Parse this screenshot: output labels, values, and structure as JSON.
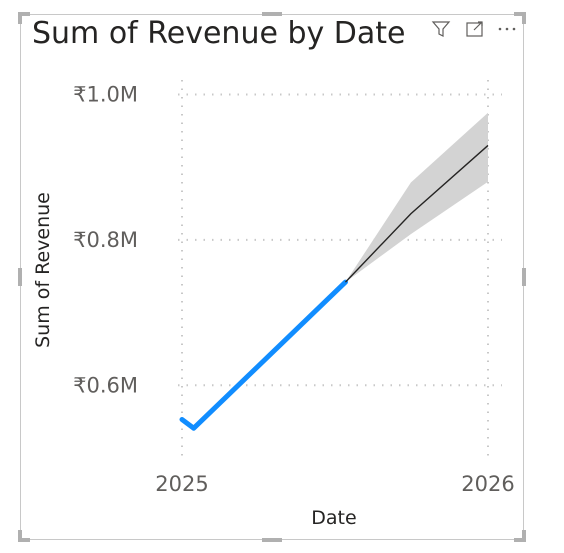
{
  "visual": {
    "title": "Sum of Revenue by Date",
    "header_icons": [
      "filter-icon",
      "focus-mode-icon",
      "more-options-icon"
    ]
  },
  "chart_data": {
    "type": "line",
    "title": "Sum of Revenue by Date",
    "xlabel": "Date",
    "ylabel": "Sum of Revenue",
    "x_ticks": [
      "2025",
      "2026"
    ],
    "y_ticks": [
      "₹0.6M",
      "₹0.8M",
      "₹1.0M"
    ],
    "y_tick_values": [
      0.6,
      0.8,
      1.0
    ],
    "x_range": [
      "2025-01-01",
      "2026-01-01"
    ],
    "y_range": [
      0.5,
      1.02
    ],
    "grid": true,
    "series": [
      {
        "color": "#118DFF",
        "points": [
          {
            "x": "2025-01-01",
            "y": 0.553
          },
          {
            "x": "2025-01-15",
            "y": 0.541
          },
          {
            "x": "2025-07-15",
            "y": 0.742
          }
        ]
      }
    ],
    "forecast": {
      "color": "#252423",
      "band_color": "#d3d3d3",
      "points": [
        {
          "x": "2025-07-15",
          "y": 0.742,
          "lower": 0.742,
          "upper": 0.742
        },
        {
          "x": "2025-10-01",
          "y": 0.836,
          "lower": 0.808,
          "upper": 0.879
        },
        {
          "x": "2026-01-01",
          "y": 0.93,
          "lower": 0.88,
          "upper": 0.975
        }
      ]
    },
    "colors": {
      "grid": "#c8c8c8",
      "axis_text": "#605e5c",
      "title": "#252423"
    }
  }
}
